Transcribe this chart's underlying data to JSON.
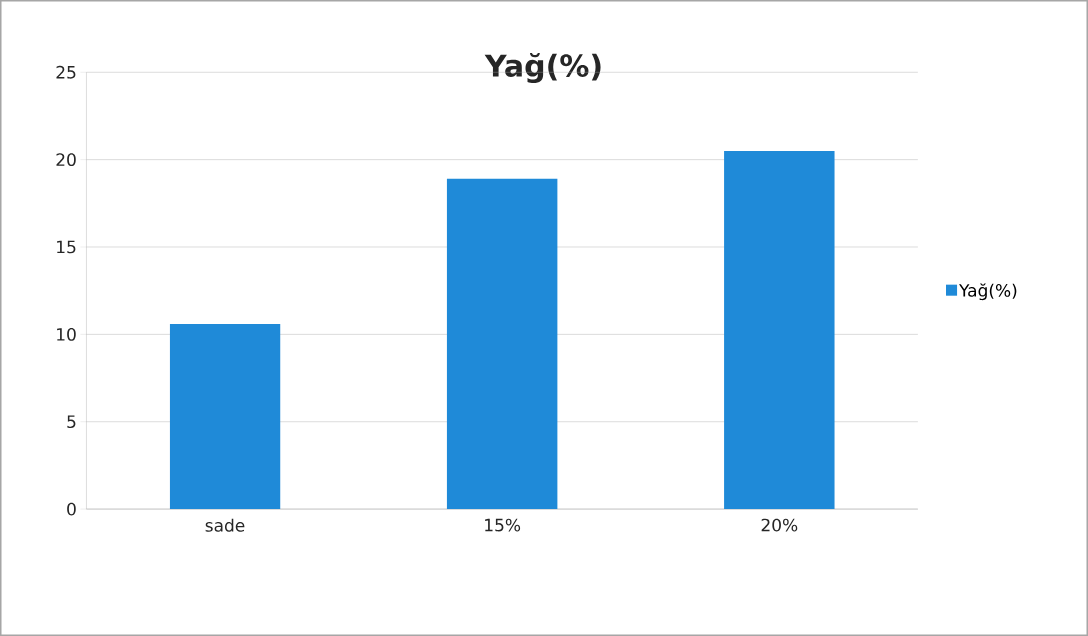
{
  "chart_data": {
    "type": "bar",
    "title": "Yağ(%)",
    "categories": [
      "sade",
      "15%",
      "20%"
    ],
    "series": [
      {
        "name": "Yağ(%)",
        "color": "#1f8ad8",
        "values": [
          10.6,
          18.9,
          20.5
        ]
      }
    ],
    "ylim": [
      0,
      25
    ],
    "yticks": [
      0,
      5,
      10,
      15,
      20,
      25
    ],
    "grid": "y",
    "legend": "right"
  }
}
